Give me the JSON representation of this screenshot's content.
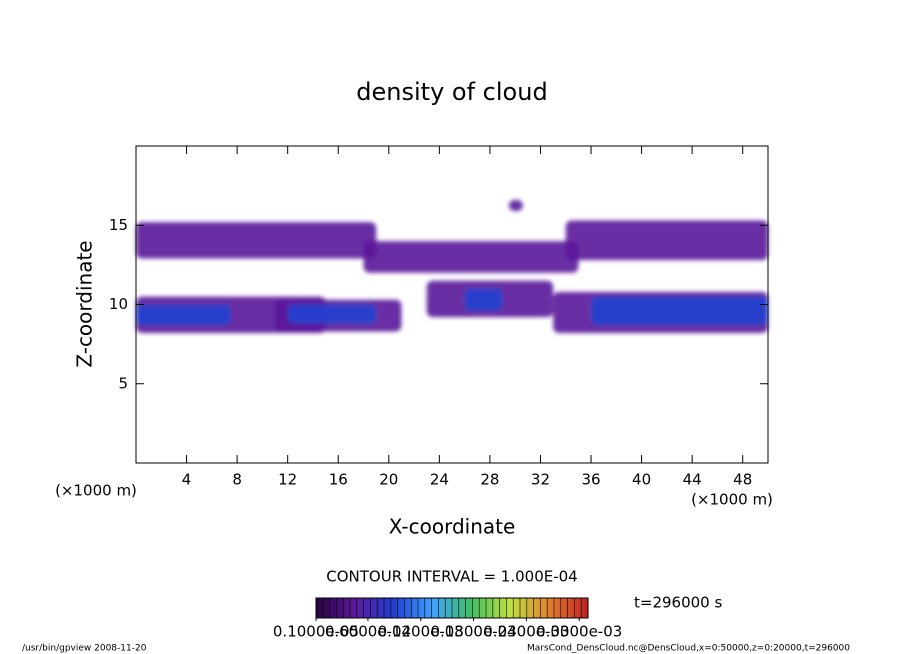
{
  "chart_data": {
    "type": "contour",
    "title": "density of cloud",
    "xlabel": "X-coordinate",
    "ylabel": "Z-coordinate",
    "xunit": "(×1000 m)",
    "yunit": "(×1000 m)",
    "xlim": [
      0,
      50
    ],
    "ylim": [
      0,
      20
    ],
    "xticks": [
      4,
      8,
      12,
      16,
      20,
      24,
      28,
      32,
      36,
      40,
      44,
      48
    ],
    "yticks": [
      5,
      10,
      15
    ],
    "regions": [
      {
        "x": [
          0,
          19
        ],
        "z": [
          12.9,
          15.2
        ],
        "value": 4e-05
      },
      {
        "x": [
          34,
          50
        ],
        "z": [
          12.8,
          15.3
        ],
        "value": 4e-05
      },
      {
        "x": [
          18,
          35
        ],
        "z": [
          12,
          14
        ],
        "value": 3e-05
      },
      {
        "x": [
          29.5,
          30.6
        ],
        "z": [
          15.9,
          16.6
        ],
        "value": 4e-05
      },
      {
        "x": [
          0,
          15
        ],
        "z": [
          8.2,
          10.5
        ],
        "value": 5e-05
      },
      {
        "x": [
          0,
          7.5
        ],
        "z": [
          8.7,
          10
        ],
        "value": 0.0001
      },
      {
        "x": [
          11,
          21
        ],
        "z": [
          8.3,
          10.3
        ],
        "value": 5e-05
      },
      {
        "x": [
          12,
          19
        ],
        "z": [
          8.8,
          10
        ],
        "value": 0.0001
      },
      {
        "x": [
          23,
          33
        ],
        "z": [
          9.2,
          11.5
        ],
        "value": 4e-05
      },
      {
        "x": [
          26,
          29
        ],
        "z": [
          9.6,
          11
        ],
        "value": 0.00011
      },
      {
        "x": [
          33,
          50
        ],
        "z": [
          8.2,
          10.8
        ],
        "value": 5e-05
      },
      {
        "x": [
          36,
          50
        ],
        "z": [
          8.7,
          10.5
        ],
        "value": 0.00011
      }
    ],
    "contour_interval": "CONTOUR INTERVAL = 1.000E-04",
    "time_label": "t=296000 s",
    "colormap": [
      "#2a0040",
      "#5a1a9a",
      "#2040d0",
      "#40a0ff",
      "#40c060",
      "#c0e040",
      "#e08030",
      "#c02020"
    ],
    "colorbar_lim": [
      1e-06,
      0.00031
    ],
    "colorbar_ticks": [
      {
        "value": 1e-06,
        "label": "0.1000e-05"
      },
      {
        "value": 6e-05,
        "label": "0.6000e-04"
      },
      {
        "value": 0.00012,
        "label": "0.1200e-03"
      },
      {
        "value": 0.00018,
        "label": "0.1800e-03"
      },
      {
        "value": 0.00024,
        "label": "0.2400e-03"
      },
      {
        "value": 0.0003,
        "label": "0.3000e-03"
      }
    ],
    "footer_left": "/usr/bin/gpview  2008-11-20",
    "footer_right": "MarsCond_DensCloud.nc@DensCloud,x=0:50000,z=0:20000,t=296000"
  }
}
